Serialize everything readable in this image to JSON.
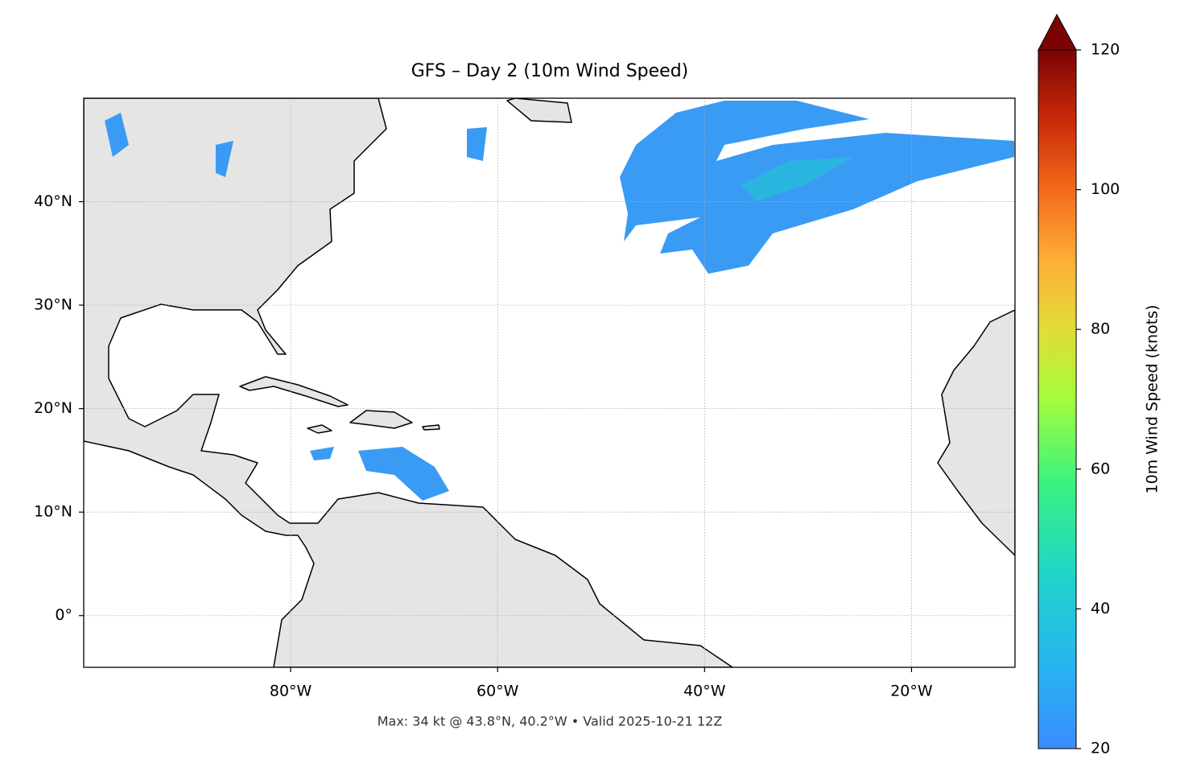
{
  "chart_data": {
    "type": "map",
    "title": "GFS – Day 2 (10m Wind Speed)",
    "footnote": "Max: 34 kt @ 43.8°N, 40.2°W • Valid 2025-10-21 12Z",
    "xlim": [
      -100,
      -10
    ],
    "ylim": [
      -5,
      50
    ],
    "xticks": [
      {
        "value": -80,
        "label": "80°W"
      },
      {
        "value": -60,
        "label": "60°W"
      },
      {
        "value": -40,
        "label": "40°W"
      },
      {
        "value": -20,
        "label": "20°W"
      }
    ],
    "yticks": [
      {
        "value": 0,
        "label": "0°"
      },
      {
        "value": 10,
        "label": "10°N"
      },
      {
        "value": 20,
        "label": "20°N"
      },
      {
        "value": 30,
        "label": "30°N"
      },
      {
        "value": 40,
        "label": "40°N"
      }
    ],
    "grid": true,
    "colorbar": {
      "label": "10m Wind Speed (knots)",
      "lim": [
        20,
        120
      ],
      "ticks": [
        20,
        40,
        60,
        80,
        100,
        120
      ]
    }
  }
}
